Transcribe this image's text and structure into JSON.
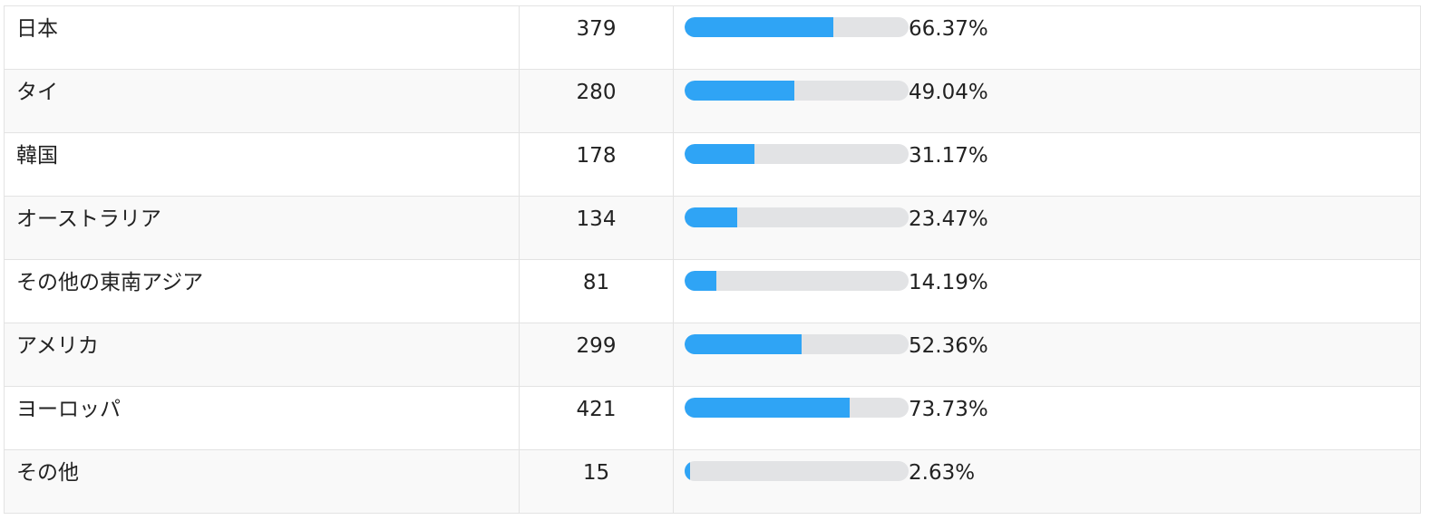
{
  "colors": {
    "bar_fill": "#2fa4f5",
    "bar_track": "#e2e3e5",
    "row_alt": "#f9f9f9",
    "border": "#e3e3e3"
  },
  "rows": [
    {
      "name": "日本",
      "count": "379",
      "percent_label": "66.37%",
      "percent": 66.37
    },
    {
      "name": "タイ",
      "count": "280",
      "percent_label": "49.04%",
      "percent": 49.04
    },
    {
      "name": "韓国",
      "count": "178",
      "percent_label": "31.17%",
      "percent": 31.17
    },
    {
      "name": "オーストラリア",
      "count": "134",
      "percent_label": "23.47%",
      "percent": 23.47
    },
    {
      "name": "その他の東南アジア",
      "count": "81",
      "percent_label": "14.19%",
      "percent": 14.19
    },
    {
      "name": "アメリカ",
      "count": "299",
      "percent_label": "52.36%",
      "percent": 52.36
    },
    {
      "name": "ヨーロッパ",
      "count": "421",
      "percent_label": "73.73%",
      "percent": 73.73
    },
    {
      "name": "その他",
      "count": "15",
      "percent_label": "2.63%",
      "percent": 2.63
    }
  ]
}
